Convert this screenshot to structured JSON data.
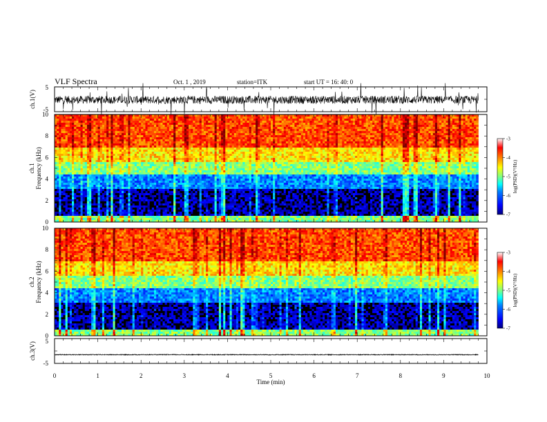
{
  "header": {
    "title": "VLF Spectra",
    "date": "Oct. 1  , 2019",
    "station": "station=ITK",
    "start": "start UT =  16: 40: 0"
  },
  "colors": {
    "jet": [
      "#00007f",
      "#0000ff",
      "#0080ff",
      "#00ffff",
      "#80ff80",
      "#ffff00",
      "#ff8000",
      "#ff0000",
      "#7f0000"
    ]
  },
  "chart_data": [
    {
      "type": "line",
      "name": "ch1-waveform",
      "ylabel": "ch.1(V)",
      "ylim": [
        -5,
        5
      ],
      "yticks": [
        "5",
        "-5"
      ],
      "xlim": [
        0,
        10
      ],
      "x_end": 9.8,
      "baseline": -0.2
    },
    {
      "type": "heatmap",
      "name": "ch1-spectrogram",
      "ylabel": [
        "ch.1",
        "Frequency  (kHz)"
      ],
      "ylim": [
        0,
        10
      ],
      "yticks": [
        "0",
        "2",
        "4",
        "6",
        "8",
        "10"
      ],
      "xlim": [
        0,
        10
      ],
      "x_end": 9.8,
      "colorbar": {
        "label": "log(PSD)(V²/Hz)",
        "range": [
          -7,
          -3
        ],
        "ticks": [
          "-3",
          "-4",
          "-5",
          "-6",
          "-7"
        ]
      },
      "bands": [
        {
          "f": [
            0,
            0.5
          ],
          "log_psd": -5.0
        },
        {
          "f": [
            0.5,
            3.0
          ],
          "log_psd": -6.8
        },
        {
          "f": [
            3.0,
            4.5
          ],
          "log_psd": -6.0
        },
        {
          "f": [
            4.5,
            5.5
          ],
          "log_psd": -5.0
        },
        {
          "f": [
            5.5,
            7.0
          ],
          "log_psd": -4.4
        },
        {
          "f": [
            7.0,
            10.0
          ],
          "log_psd": -3.8
        }
      ]
    },
    {
      "type": "heatmap",
      "name": "ch2-spectrogram",
      "ylabel": [
        "ch.2",
        "Frequency  (kHz)"
      ],
      "ylim": [
        0,
        10
      ],
      "yticks": [
        "0",
        "2",
        "4",
        "6",
        "8",
        "10"
      ],
      "xlim": [
        0,
        10
      ],
      "x_end": 9.8,
      "colorbar": {
        "label": "log(PSD)(V²/Hz)",
        "range": [
          -7,
          -3
        ],
        "ticks": [
          "-3",
          "-4",
          "-5",
          "-6",
          "-7"
        ]
      },
      "bands": [
        {
          "f": [
            0,
            0.5
          ],
          "log_psd": -5.0
        },
        {
          "f": [
            0.5,
            3.0
          ],
          "log_psd": -6.8
        },
        {
          "f": [
            3.0,
            4.5
          ],
          "log_psd": -6.0
        },
        {
          "f": [
            4.5,
            5.5
          ],
          "log_psd": -5.0
        },
        {
          "f": [
            5.5,
            7.0
          ],
          "log_psd": -4.4
        },
        {
          "f": [
            7.0,
            10.0
          ],
          "log_psd": -3.8
        }
      ]
    },
    {
      "type": "line",
      "name": "ch3-waveform",
      "ylabel": "ch.3(V)",
      "ylim": [
        -5,
        5
      ],
      "yticks": [
        "5",
        "-5"
      ],
      "xlim": [
        0,
        10
      ],
      "x_end": 9.8,
      "baseline": -1.5,
      "xlabel": "Time  (min)",
      "xticks": [
        "0",
        "1",
        "2",
        "3",
        "4",
        "5",
        "6",
        "7",
        "8",
        "9",
        "10"
      ]
    }
  ]
}
